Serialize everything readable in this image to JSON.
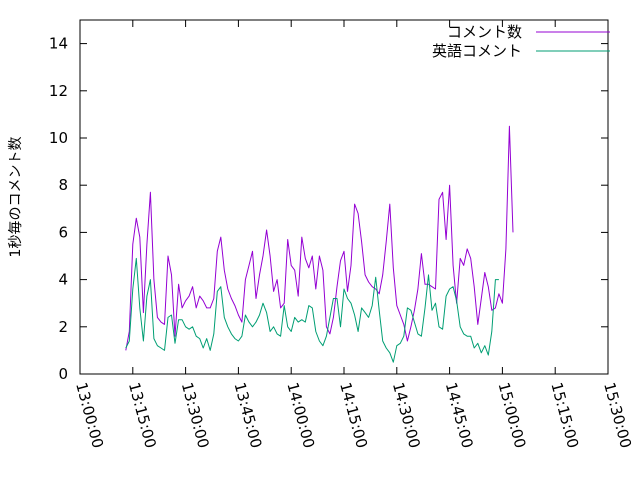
{
  "chart_data": {
    "type": "line",
    "title": "",
    "xlabel": "",
    "ylabel": "1秒毎のコメント数",
    "x_ticks": [
      "13:00:00",
      "13:15:00",
      "13:30:00",
      "13:45:00",
      "14:00:00",
      "14:15:00",
      "14:30:00",
      "14:45:00",
      "15:00:00",
      "15:15:00",
      "15:30:00"
    ],
    "y_ticks": [
      "0",
      "2",
      "4",
      "6",
      "8",
      "10",
      "12",
      "14"
    ],
    "xlim": [
      "13:00:00",
      "15:30:00"
    ],
    "ylim": [
      0,
      15
    ],
    "grid": false,
    "legend_position": "top-right",
    "series": [
      {
        "name": "コメント数",
        "color": "#9400d3",
        "points": [
          [
            "13:13:00",
            1.0
          ],
          [
            "13:14:00",
            1.8
          ],
          [
            "13:15:00",
            5.5
          ],
          [
            "13:16:00",
            6.6
          ],
          [
            "13:17:00",
            5.8
          ],
          [
            "13:18:00",
            2.6
          ],
          [
            "13:19:00",
            5.5
          ],
          [
            "13:20:00",
            7.7
          ],
          [
            "13:21:00",
            4.0
          ],
          [
            "13:22:00",
            2.4
          ],
          [
            "13:23:00",
            2.2
          ],
          [
            "13:24:00",
            2.1
          ],
          [
            "13:25:00",
            5.0
          ],
          [
            "13:26:00",
            4.2
          ],
          [
            "13:27:00",
            1.6
          ],
          [
            "13:28:00",
            3.8
          ],
          [
            "13:29:00",
            2.8
          ],
          [
            "13:30:00",
            3.1
          ],
          [
            "13:31:00",
            3.3
          ],
          [
            "13:32:00",
            3.7
          ],
          [
            "13:33:00",
            2.8
          ],
          [
            "13:34:00",
            3.3
          ],
          [
            "13:35:00",
            3.1
          ],
          [
            "13:36:00",
            2.8
          ],
          [
            "13:37:00",
            2.8
          ],
          [
            "13:38:00",
            3.2
          ],
          [
            "13:39:00",
            5.2
          ],
          [
            "13:40:00",
            5.8
          ],
          [
            "13:41:00",
            4.4
          ],
          [
            "13:42:00",
            3.6
          ],
          [
            "13:43:00",
            3.2
          ],
          [
            "13:44:00",
            2.9
          ],
          [
            "13:45:00",
            2.5
          ],
          [
            "13:46:00",
            2.2
          ],
          [
            "13:47:00",
            4.0
          ],
          [
            "13:48:00",
            4.6
          ],
          [
            "13:49:00",
            5.2
          ],
          [
            "13:50:00",
            3.2
          ],
          [
            "13:51:00",
            4.2
          ],
          [
            "13:52:00",
            5.0
          ],
          [
            "13:53:00",
            6.1
          ],
          [
            "13:54:00",
            5.0
          ],
          [
            "13:55:00",
            3.5
          ],
          [
            "13:56:00",
            4.0
          ],
          [
            "13:57:00",
            2.8
          ],
          [
            "13:58:00",
            3.0
          ],
          [
            "13:59:00",
            5.7
          ],
          [
            "14:00:00",
            4.6
          ],
          [
            "14:01:00",
            4.4
          ],
          [
            "14:02:00",
            3.3
          ],
          [
            "14:03:00",
            5.8
          ],
          [
            "14:04:00",
            4.9
          ],
          [
            "14:05:00",
            4.5
          ],
          [
            "14:06:00",
            5.0
          ],
          [
            "14:07:00",
            3.6
          ],
          [
            "14:08:00",
            5.0
          ],
          [
            "14:09:00",
            4.4
          ],
          [
            "14:10:00",
            2.0
          ],
          [
            "14:11:00",
            1.7
          ],
          [
            "14:12:00",
            2.4
          ],
          [
            "14:13:00",
            3.7
          ],
          [
            "14:14:00",
            4.8
          ],
          [
            "14:15:00",
            5.2
          ],
          [
            "14:16:00",
            3.5
          ],
          [
            "14:17:00",
            4.6
          ],
          [
            "14:18:00",
            7.2
          ],
          [
            "14:19:00",
            6.8
          ],
          [
            "14:20:00",
            5.6
          ],
          [
            "14:21:00",
            4.2
          ],
          [
            "14:22:00",
            3.9
          ],
          [
            "14:23:00",
            3.7
          ],
          [
            "14:24:00",
            3.6
          ],
          [
            "14:25:00",
            3.4
          ],
          [
            "14:26:00",
            4.2
          ],
          [
            "14:27:00",
            5.6
          ],
          [
            "14:28:00",
            7.2
          ],
          [
            "14:29:00",
            4.5
          ],
          [
            "14:30:00",
            2.9
          ],
          [
            "14:31:00",
            2.5
          ],
          [
            "14:32:00",
            2.1
          ],
          [
            "14:33:00",
            1.4
          ],
          [
            "14:34:00",
            2.0
          ],
          [
            "14:35:00",
            2.7
          ],
          [
            "14:36:00",
            3.6
          ],
          [
            "14:37:00",
            5.1
          ],
          [
            "14:38:00",
            3.8
          ],
          [
            "14:39:00",
            3.8
          ],
          [
            "14:40:00",
            3.7
          ],
          [
            "14:41:00",
            3.6
          ],
          [
            "14:42:00",
            7.4
          ],
          [
            "14:43:00",
            7.7
          ],
          [
            "14:44:00",
            5.7
          ],
          [
            "14:45:00",
            8.0
          ],
          [
            "14:46:00",
            4.6
          ],
          [
            "14:47:00",
            3.0
          ],
          [
            "14:48:00",
            4.9
          ],
          [
            "14:49:00",
            4.6
          ],
          [
            "14:50:00",
            5.3
          ],
          [
            "14:51:00",
            4.9
          ],
          [
            "14:52:00",
            3.7
          ],
          [
            "14:53:00",
            2.1
          ],
          [
            "14:54:00",
            3.2
          ],
          [
            "14:55:00",
            4.3
          ],
          [
            "14:56:00",
            3.7
          ],
          [
            "14:57:00",
            2.7
          ],
          [
            "14:58:00",
            2.8
          ],
          [
            "14:59:00",
            3.4
          ],
          [
            "15:00:00",
            3.0
          ],
          [
            "15:01:00",
            5.3
          ],
          [
            "15:02:00",
            10.5
          ],
          [
            "15:03:00",
            6.0
          ]
        ]
      },
      {
        "name": "英語コメント",
        "color": "#009e73",
        "points": [
          [
            "13:13:00",
            1.1
          ],
          [
            "13:14:00",
            1.4
          ],
          [
            "13:15:00",
            3.6
          ],
          [
            "13:16:00",
            4.9
          ],
          [
            "13:17:00",
            2.8
          ],
          [
            "13:18:00",
            1.4
          ],
          [
            "13:19:00",
            3.3
          ],
          [
            "13:20:00",
            4.0
          ],
          [
            "13:21:00",
            1.5
          ],
          [
            "13:22:00",
            1.2
          ],
          [
            "13:23:00",
            1.1
          ],
          [
            "13:24:00",
            1.0
          ],
          [
            "13:25:00",
            2.4
          ],
          [
            "13:26:00",
            2.5
          ],
          [
            "13:27:00",
            1.3
          ],
          [
            "13:28:00",
            2.3
          ],
          [
            "13:29:00",
            2.3
          ],
          [
            "13:30:00",
            2.0
          ],
          [
            "13:31:00",
            1.9
          ],
          [
            "13:32:00",
            2.0
          ],
          [
            "13:33:00",
            1.6
          ],
          [
            "13:34:00",
            1.5
          ],
          [
            "13:35:00",
            1.1
          ],
          [
            "13:36:00",
            1.5
          ],
          [
            "13:37:00",
            1.0
          ],
          [
            "13:38:00",
            1.7
          ],
          [
            "13:39:00",
            3.5
          ],
          [
            "13:40:00",
            3.7
          ],
          [
            "13:41:00",
            2.4
          ],
          [
            "13:42:00",
            2.0
          ],
          [
            "13:43:00",
            1.7
          ],
          [
            "13:44:00",
            1.5
          ],
          [
            "13:45:00",
            1.4
          ],
          [
            "13:46:00",
            1.6
          ],
          [
            "13:47:00",
            2.5
          ],
          [
            "13:48:00",
            2.2
          ],
          [
            "13:49:00",
            2.0
          ],
          [
            "13:50:00",
            2.2
          ],
          [
            "13:51:00",
            2.5
          ],
          [
            "13:52:00",
            3.0
          ],
          [
            "13:53:00",
            2.6
          ],
          [
            "13:54:00",
            1.8
          ],
          [
            "13:55:00",
            2.0
          ],
          [
            "13:56:00",
            1.7
          ],
          [
            "13:57:00",
            1.6
          ],
          [
            "13:58:00",
            2.9
          ],
          [
            "13:59:00",
            2.0
          ],
          [
            "14:00:00",
            1.8
          ],
          [
            "14:01:00",
            2.4
          ],
          [
            "14:02:00",
            2.2
          ],
          [
            "14:03:00",
            2.3
          ],
          [
            "14:04:00",
            2.2
          ],
          [
            "14:05:00",
            2.9
          ],
          [
            "14:06:00",
            2.8
          ],
          [
            "14:07:00",
            1.8
          ],
          [
            "14:08:00",
            1.4
          ],
          [
            "14:09:00",
            1.2
          ],
          [
            "14:10:00",
            1.6
          ],
          [
            "14:11:00",
            2.4
          ],
          [
            "14:12:00",
            3.2
          ],
          [
            "14:13:00",
            3.2
          ],
          [
            "14:14:00",
            2.0
          ],
          [
            "14:15:00",
            3.6
          ],
          [
            "14:16:00",
            3.2
          ],
          [
            "14:17:00",
            3.0
          ],
          [
            "14:18:00",
            2.5
          ],
          [
            "14:19:00",
            1.8
          ],
          [
            "14:20:00",
            2.8
          ],
          [
            "14:21:00",
            2.6
          ],
          [
            "14:22:00",
            2.4
          ],
          [
            "14:23:00",
            2.9
          ],
          [
            "14:24:00",
            4.1
          ],
          [
            "14:25:00",
            2.7
          ],
          [
            "14:26:00",
            1.4
          ],
          [
            "14:27:00",
            1.1
          ],
          [
            "14:28:00",
            0.9
          ],
          [
            "14:29:00",
            0.5
          ],
          [
            "14:30:00",
            1.2
          ],
          [
            "14:31:00",
            1.3
          ],
          [
            "14:32:00",
            1.6
          ],
          [
            "14:33:00",
            2.8
          ],
          [
            "14:34:00",
            2.7
          ],
          [
            "14:35:00",
            2.2
          ],
          [
            "14:36:00",
            1.7
          ],
          [
            "14:37:00",
            1.6
          ],
          [
            "14:38:00",
            2.8
          ],
          [
            "14:39:00",
            4.2
          ],
          [
            "14:40:00",
            2.7
          ],
          [
            "14:41:00",
            3.0
          ],
          [
            "14:42:00",
            2.0
          ],
          [
            "14:43:00",
            1.9
          ],
          [
            "14:44:00",
            3.3
          ],
          [
            "14:45:00",
            3.6
          ],
          [
            "14:46:00",
            3.7
          ],
          [
            "14:47:00",
            3.1
          ],
          [
            "14:48:00",
            2.0
          ],
          [
            "14:49:00",
            1.7
          ],
          [
            "14:50:00",
            1.6
          ],
          [
            "14:51:00",
            1.6
          ],
          [
            "14:52:00",
            1.1
          ],
          [
            "14:53:00",
            1.3
          ],
          [
            "14:54:00",
            0.9
          ],
          [
            "14:55:00",
            1.2
          ],
          [
            "14:56:00",
            0.8
          ],
          [
            "14:57:00",
            1.8
          ],
          [
            "14:58:00",
            4.0
          ],
          [
            "14:59:00",
            4.0
          ]
        ]
      }
    ]
  }
}
